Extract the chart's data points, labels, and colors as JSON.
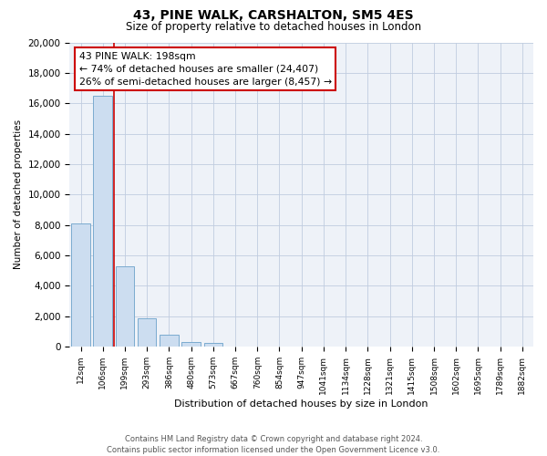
{
  "title": "43, PINE WALK, CARSHALTON, SM5 4ES",
  "subtitle": "Size of property relative to detached houses in London",
  "xlabel": "Distribution of detached houses by size in London",
  "ylabel": "Number of detached properties",
  "bar_labels": [
    "12sqm",
    "106sqm",
    "199sqm",
    "293sqm",
    "386sqm",
    "480sqm",
    "573sqm",
    "667sqm",
    "760sqm",
    "854sqm",
    "947sqm",
    "1041sqm",
    "1134sqm",
    "1228sqm",
    "1321sqm",
    "1415sqm",
    "1508sqm",
    "1602sqm",
    "1695sqm",
    "1789sqm",
    "1882sqm"
  ],
  "bar_values": [
    8100,
    16500,
    5300,
    1850,
    800,
    280,
    270,
    0,
    0,
    0,
    0,
    0,
    0,
    0,
    0,
    0,
    0,
    0,
    0,
    0,
    0
  ],
  "bar_color": "#ccddf0",
  "bar_edge_color": "#7aabcf",
  "property_line_color": "#cc0000",
  "ylim": [
    0,
    20000
  ],
  "yticks": [
    0,
    2000,
    4000,
    6000,
    8000,
    10000,
    12000,
    14000,
    16000,
    18000,
    20000
  ],
  "annotation_line1": "43 PINE WALK: 198sqm",
  "annotation_line2": "← 74% of detached houses are smaller (24,407)",
  "annotation_line3": "26% of semi-detached houses are larger (8,457) →",
  "footer_line1": "Contains HM Land Registry data © Crown copyright and database right 2024.",
  "footer_line2": "Contains public sector information licensed under the Open Government Licence v3.0.",
  "background_color": "#eef2f8",
  "grid_color": "#c0cce0",
  "figsize": [
    6.0,
    5.0
  ],
  "dpi": 100
}
